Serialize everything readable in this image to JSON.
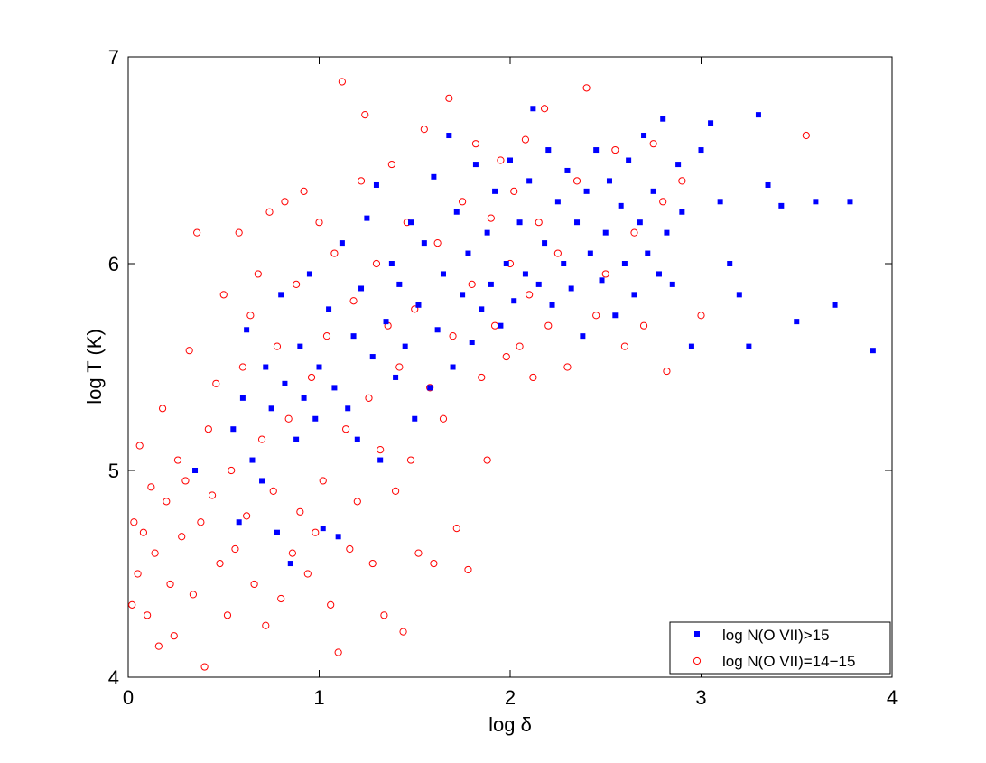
{
  "chart_data": {
    "type": "scatter",
    "title": "",
    "xlabel": "log δ",
    "ylabel": "log T (K)",
    "xlim": [
      0,
      4
    ],
    "ylim": [
      4,
      7
    ],
    "xticks": [
      "0",
      "1",
      "2",
      "3",
      "4"
    ],
    "yticks": [
      "4",
      "5",
      "6",
      "7"
    ],
    "grid": false,
    "legend_position": "bottom-right",
    "series": [
      {
        "name": "log N(O VII)>15",
        "marker": "filled-square",
        "color": "#0000ff",
        "points": [
          [
            0.35,
            5.0
          ],
          [
            0.55,
            5.2
          ],
          [
            0.58,
            4.75
          ],
          [
            0.6,
            5.35
          ],
          [
            0.62,
            5.68
          ],
          [
            0.65,
            5.05
          ],
          [
            0.7,
            4.95
          ],
          [
            0.72,
            5.5
          ],
          [
            0.75,
            5.3
          ],
          [
            0.78,
            4.7
          ],
          [
            0.8,
            5.85
          ],
          [
            0.82,
            5.42
          ],
          [
            0.85,
            4.55
          ],
          [
            0.88,
            5.15
          ],
          [
            0.9,
            5.6
          ],
          [
            0.92,
            5.35
          ],
          [
            0.95,
            5.95
          ],
          [
            0.98,
            5.25
          ],
          [
            1.0,
            5.5
          ],
          [
            1.02,
            4.72
          ],
          [
            1.05,
            5.78
          ],
          [
            1.08,
            5.4
          ],
          [
            1.1,
            4.68
          ],
          [
            1.12,
            6.1
          ],
          [
            1.15,
            5.3
          ],
          [
            1.18,
            5.65
          ],
          [
            1.2,
            5.15
          ],
          [
            1.22,
            5.88
          ],
          [
            1.25,
            6.22
          ],
          [
            1.28,
            5.55
          ],
          [
            1.3,
            6.38
          ],
          [
            1.32,
            5.05
          ],
          [
            1.35,
            5.72
          ],
          [
            1.38,
            6.0
          ],
          [
            1.4,
            5.45
          ],
          [
            1.42,
            5.9
          ],
          [
            1.45,
            5.6
          ],
          [
            1.48,
            6.2
          ],
          [
            1.5,
            5.25
          ],
          [
            1.52,
            5.8
          ],
          [
            1.55,
            6.1
          ],
          [
            1.58,
            5.4
          ],
          [
            1.6,
            6.42
          ],
          [
            1.62,
            5.68
          ],
          [
            1.65,
            5.95
          ],
          [
            1.68,
            6.62
          ],
          [
            1.7,
            5.5
          ],
          [
            1.72,
            6.25
          ],
          [
            1.75,
            5.85
          ],
          [
            1.78,
            6.05
          ],
          [
            1.8,
            5.62
          ],
          [
            1.82,
            6.48
          ],
          [
            1.85,
            5.78
          ],
          [
            1.88,
            6.15
          ],
          [
            1.9,
            5.9
          ],
          [
            1.92,
            6.35
          ],
          [
            1.95,
            5.7
          ],
          [
            1.98,
            6.0
          ],
          [
            2.0,
            6.5
          ],
          [
            2.02,
            5.82
          ],
          [
            2.05,
            6.2
          ],
          [
            2.08,
            5.95
          ],
          [
            2.1,
            6.4
          ],
          [
            2.12,
            6.75
          ],
          [
            2.15,
            5.9
          ],
          [
            2.18,
            6.1
          ],
          [
            2.2,
            6.55
          ],
          [
            2.22,
            5.8
          ],
          [
            2.25,
            6.3
          ],
          [
            2.28,
            6.0
          ],
          [
            2.3,
            6.45
          ],
          [
            2.32,
            5.88
          ],
          [
            2.35,
            6.2
          ],
          [
            2.38,
            5.65
          ],
          [
            2.4,
            6.35
          ],
          [
            2.42,
            6.05
          ],
          [
            2.45,
            6.55
          ],
          [
            2.48,
            5.92
          ],
          [
            2.5,
            6.15
          ],
          [
            2.52,
            6.4
          ],
          [
            2.55,
            5.75
          ],
          [
            2.58,
            6.28
          ],
          [
            2.6,
            6.0
          ],
          [
            2.62,
            6.5
          ],
          [
            2.65,
            5.85
          ],
          [
            2.68,
            6.2
          ],
          [
            2.7,
            6.62
          ],
          [
            2.72,
            6.05
          ],
          [
            2.75,
            6.35
          ],
          [
            2.78,
            5.95
          ],
          [
            2.8,
            6.7
          ],
          [
            2.82,
            6.15
          ],
          [
            2.85,
            5.9
          ],
          [
            2.88,
            6.48
          ],
          [
            2.9,
            6.25
          ],
          [
            2.95,
            5.6
          ],
          [
            3.0,
            6.55
          ],
          [
            3.05,
            6.68
          ],
          [
            3.1,
            6.3
          ],
          [
            3.15,
            6.0
          ],
          [
            3.2,
            5.85
          ],
          [
            3.25,
            5.6
          ],
          [
            3.3,
            6.72
          ],
          [
            3.35,
            6.38
          ],
          [
            3.42,
            6.28
          ],
          [
            3.5,
            5.72
          ],
          [
            3.6,
            6.3
          ],
          [
            3.7,
            5.8
          ],
          [
            3.78,
            6.3
          ],
          [
            3.9,
            5.58
          ]
        ]
      },
      {
        "name": "log N(O VII)=14−15",
        "marker": "open-circle",
        "color": "#ff0000",
        "points": [
          [
            0.02,
            4.35
          ],
          [
            0.03,
            4.75
          ],
          [
            0.05,
            4.5
          ],
          [
            0.06,
            5.12
          ],
          [
            0.08,
            4.7
          ],
          [
            0.1,
            4.3
          ],
          [
            0.12,
            4.92
          ],
          [
            0.14,
            4.6
          ],
          [
            0.16,
            4.15
          ],
          [
            0.18,
            5.3
          ],
          [
            0.2,
            4.85
          ],
          [
            0.22,
            4.45
          ],
          [
            0.24,
            4.2
          ],
          [
            0.26,
            5.05
          ],
          [
            0.28,
            4.68
          ],
          [
            0.3,
            4.95
          ],
          [
            0.32,
            5.58
          ],
          [
            0.34,
            4.4
          ],
          [
            0.36,
            6.15
          ],
          [
            0.38,
            4.75
          ],
          [
            0.4,
            4.05
          ],
          [
            0.42,
            5.2
          ],
          [
            0.44,
            4.88
          ],
          [
            0.46,
            5.42
          ],
          [
            0.48,
            4.55
          ],
          [
            0.5,
            5.85
          ],
          [
            0.52,
            4.3
          ],
          [
            0.54,
            5.0
          ],
          [
            0.56,
            4.62
          ],
          [
            0.58,
            6.15
          ],
          [
            0.6,
            5.5
          ],
          [
            0.62,
            4.78
          ],
          [
            0.64,
            5.75
          ],
          [
            0.66,
            4.45
          ],
          [
            0.68,
            5.95
          ],
          [
            0.7,
            5.15
          ],
          [
            0.72,
            4.25
          ],
          [
            0.74,
            6.25
          ],
          [
            0.76,
            4.9
          ],
          [
            0.78,
            5.6
          ],
          [
            0.8,
            4.38
          ],
          [
            0.82,
            6.3
          ],
          [
            0.84,
            5.25
          ],
          [
            0.86,
            4.6
          ],
          [
            0.88,
            5.9
          ],
          [
            0.9,
            4.8
          ],
          [
            0.92,
            6.35
          ],
          [
            0.94,
            4.5
          ],
          [
            0.96,
            5.45
          ],
          [
            0.98,
            4.7
          ],
          [
            1.0,
            6.2
          ],
          [
            1.02,
            4.95
          ],
          [
            1.04,
            5.65
          ],
          [
            1.06,
            4.35
          ],
          [
            1.08,
            6.05
          ],
          [
            1.1,
            4.12
          ],
          [
            1.12,
            6.88
          ],
          [
            1.14,
            5.2
          ],
          [
            1.16,
            4.62
          ],
          [
            1.18,
            5.82
          ],
          [
            1.2,
            4.85
          ],
          [
            1.22,
            6.4
          ],
          [
            1.24,
            6.72
          ],
          [
            1.26,
            5.35
          ],
          [
            1.28,
            4.55
          ],
          [
            1.3,
            6.0
          ],
          [
            1.32,
            5.1
          ],
          [
            1.34,
            4.3
          ],
          [
            1.36,
            5.7
          ],
          [
            1.38,
            6.48
          ],
          [
            1.4,
            4.9
          ],
          [
            1.42,
            5.5
          ],
          [
            1.44,
            4.22
          ],
          [
            1.46,
            6.2
          ],
          [
            1.48,
            5.05
          ],
          [
            1.5,
            5.78
          ],
          [
            1.52,
            4.6
          ],
          [
            1.55,
            6.65
          ],
          [
            1.58,
            5.4
          ],
          [
            1.6,
            4.55
          ],
          [
            1.62,
            6.1
          ],
          [
            1.65,
            5.25
          ],
          [
            1.68,
            6.8
          ],
          [
            1.7,
            5.65
          ],
          [
            1.72,
            4.72
          ],
          [
            1.75,
            6.3
          ],
          [
            1.78,
            4.52
          ],
          [
            1.8,
            5.9
          ],
          [
            1.82,
            6.58
          ],
          [
            1.85,
            5.45
          ],
          [
            1.88,
            5.05
          ],
          [
            1.9,
            6.22
          ],
          [
            1.92,
            5.7
          ],
          [
            1.95,
            6.5
          ],
          [
            1.98,
            5.55
          ],
          [
            2.0,
            6.0
          ],
          [
            2.02,
            6.35
          ],
          [
            2.05,
            5.6
          ],
          [
            2.08,
            6.6
          ],
          [
            2.1,
            5.85
          ],
          [
            2.12,
            5.45
          ],
          [
            2.15,
            6.2
          ],
          [
            2.18,
            6.75
          ],
          [
            2.2,
            5.7
          ],
          [
            2.25,
            6.05
          ],
          [
            2.3,
            5.5
          ],
          [
            2.35,
            6.4
          ],
          [
            2.4,
            6.85
          ],
          [
            2.45,
            5.75
          ],
          [
            2.5,
            5.95
          ],
          [
            2.55,
            6.55
          ],
          [
            2.6,
            5.6
          ],
          [
            2.65,
            6.15
          ],
          [
            2.7,
            5.7
          ],
          [
            2.75,
            6.58
          ],
          [
            2.8,
            6.3
          ],
          [
            2.82,
            5.48
          ],
          [
            2.9,
            6.4
          ],
          [
            3.0,
            5.75
          ],
          [
            3.55,
            6.62
          ]
        ]
      }
    ]
  }
}
